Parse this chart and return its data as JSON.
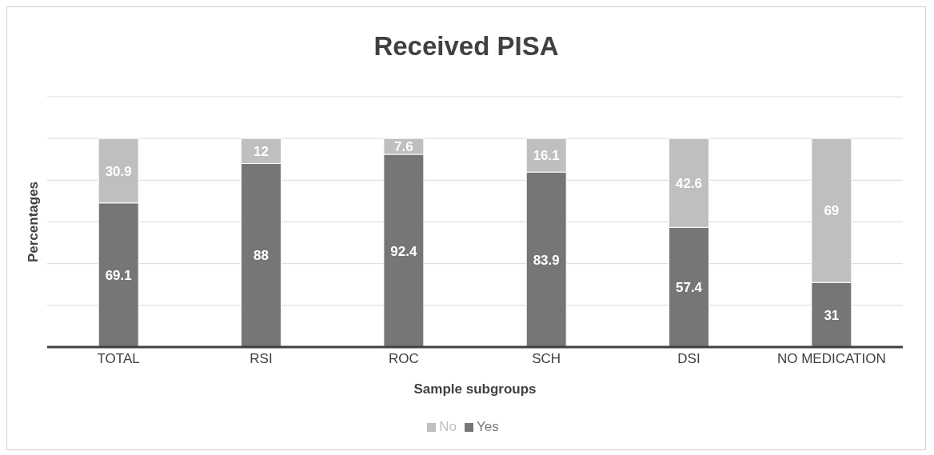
{
  "chart_data": {
    "type": "bar",
    "title": "Received PISA",
    "xlabel": "Sample subgroups",
    "ylabel": "Percentages",
    "categories": [
      "TOTAL",
      "RSI",
      "ROC",
      "SCH",
      "DSI",
      "NO MEDICATION"
    ],
    "series": [
      {
        "name": "Yes",
        "color": "#767676",
        "values": [
          69.1,
          88,
          92.4,
          83.9,
          57.4,
          31
        ]
      },
      {
        "name": "No",
        "color": "#bfbfbf",
        "values": [
          30.9,
          12,
          7.6,
          16.1,
          42.6,
          69
        ]
      }
    ],
    "stacked": true,
    "data_labels": true,
    "ylim": [
      0,
      120
    ],
    "yticks": [
      {
        "value": 0,
        "label": null
      },
      {
        "value": 20,
        "label": null
      },
      {
        "value": 40,
        "label": null
      },
      {
        "value": 60,
        "label": null
      },
      {
        "value": 80,
        "label": null
      },
      {
        "value": 100,
        "label": null
      },
      {
        "value": 120,
        "label": null
      }
    ],
    "grid": "y",
    "legend": "bottom",
    "tick_labels": "x"
  }
}
